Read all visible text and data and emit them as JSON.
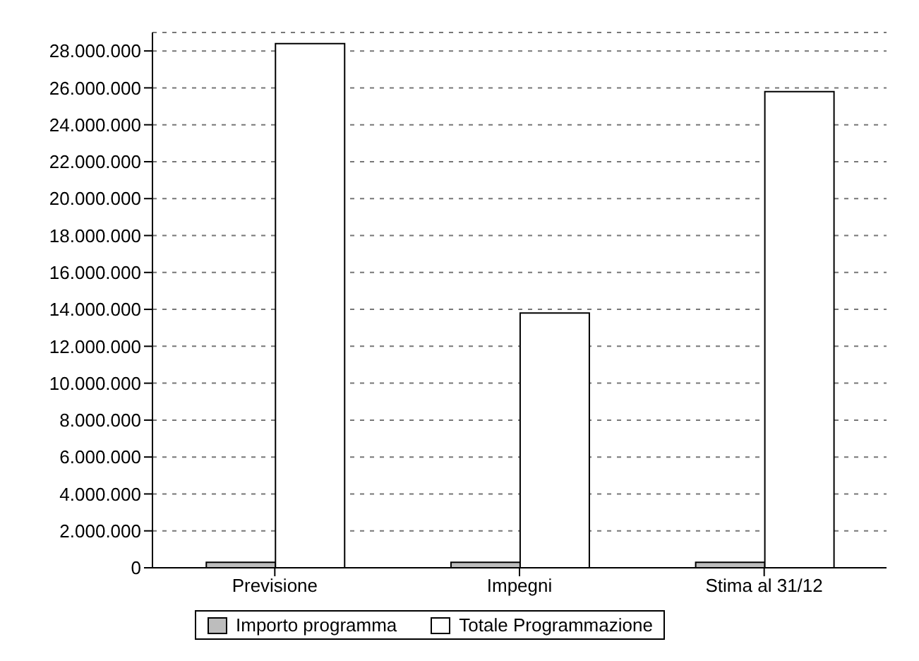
{
  "chart_data": {
    "type": "bar",
    "categories": [
      "Previsione",
      "Impegni",
      "Stima al 31/12"
    ],
    "series": [
      {
        "name": "Importo programma",
        "color": "#bdbdbd",
        "values": [
          300000,
          300000,
          300000
        ]
      },
      {
        "name": "Totale Programmazione",
        "color": "#ffffff",
        "values": [
          28400000,
          13800000,
          25800000
        ]
      }
    ],
    "ylim": [
      0,
      29000000
    ],
    "yticks": [
      {
        "value": 0,
        "label": "0"
      },
      {
        "value": 2000000,
        "label": "2.000.000"
      },
      {
        "value": 4000000,
        "label": "4.000.000"
      },
      {
        "value": 6000000,
        "label": "6.000.000"
      },
      {
        "value": 8000000,
        "label": "8.000.000"
      },
      {
        "value": 10000000,
        "label": "10.000.000"
      },
      {
        "value": 12000000,
        "label": "12.000.000"
      },
      {
        "value": 14000000,
        "label": "14.000.000"
      },
      {
        "value": 16000000,
        "label": "16.000.000"
      },
      {
        "value": 18000000,
        "label": "18.000.000"
      },
      {
        "value": 20000000,
        "label": "20.000.000"
      },
      {
        "value": 22000000,
        "label": "22.000.000"
      },
      {
        "value": 24000000,
        "label": "24.000.000"
      },
      {
        "value": 26000000,
        "label": "26.000.000"
      },
      {
        "value": 28000000,
        "label": "28.000.000"
      }
    ],
    "grid": "y",
    "legend": "bottom"
  }
}
